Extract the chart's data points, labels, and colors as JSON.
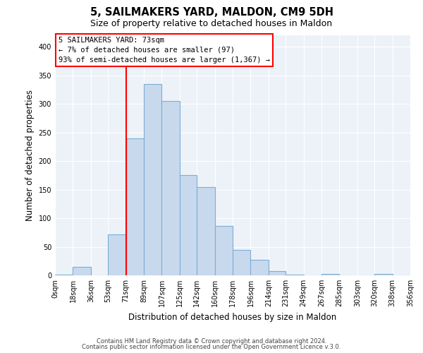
{
  "title": "5, SAILMAKERS YARD, MALDON, CM9 5DH",
  "subtitle": "Size of property relative to detached houses in Maldon",
  "xlabel": "Distribution of detached houses by size in Maldon",
  "ylabel": "Number of detached properties",
  "bar_color": "#c8d9ee",
  "bar_edge_color": "#7bafd4",
  "background_color": "#edf2f9",
  "bin_labels": [
    "0sqm",
    "18sqm",
    "36sqm",
    "53sqm",
    "71sqm",
    "89sqm",
    "107sqm",
    "125sqm",
    "142sqm",
    "160sqm",
    "178sqm",
    "196sqm",
    "214sqm",
    "231sqm",
    "249sqm",
    "267sqm",
    "285sqm",
    "303sqm",
    "320sqm",
    "338sqm",
    "356sqm"
  ],
  "bar_heights": [
    1,
    15,
    0,
    72,
    240,
    335,
    305,
    175,
    155,
    87,
    45,
    27,
    7,
    1,
    0,
    2,
    0,
    0,
    3,
    0
  ],
  "ylim": [
    0,
    420
  ],
  "yticks": [
    0,
    50,
    100,
    150,
    200,
    250,
    300,
    350,
    400
  ],
  "vline_x": 71,
  "annotation_title": "5 SAILMAKERS YARD: 73sqm",
  "annotation_line1": "← 7% of detached houses are smaller (97)",
  "annotation_line2": "93% of semi-detached houses are larger (1,367) →",
  "footer1": "Contains HM Land Registry data © Crown copyright and database right 2024.",
  "footer2": "Contains public sector information licensed under the Open Government Licence v.3.0.",
  "bin_edges": [
    0,
    18,
    36,
    53,
    71,
    89,
    107,
    125,
    142,
    160,
    178,
    196,
    214,
    231,
    249,
    267,
    285,
    303,
    320,
    338,
    356
  ]
}
